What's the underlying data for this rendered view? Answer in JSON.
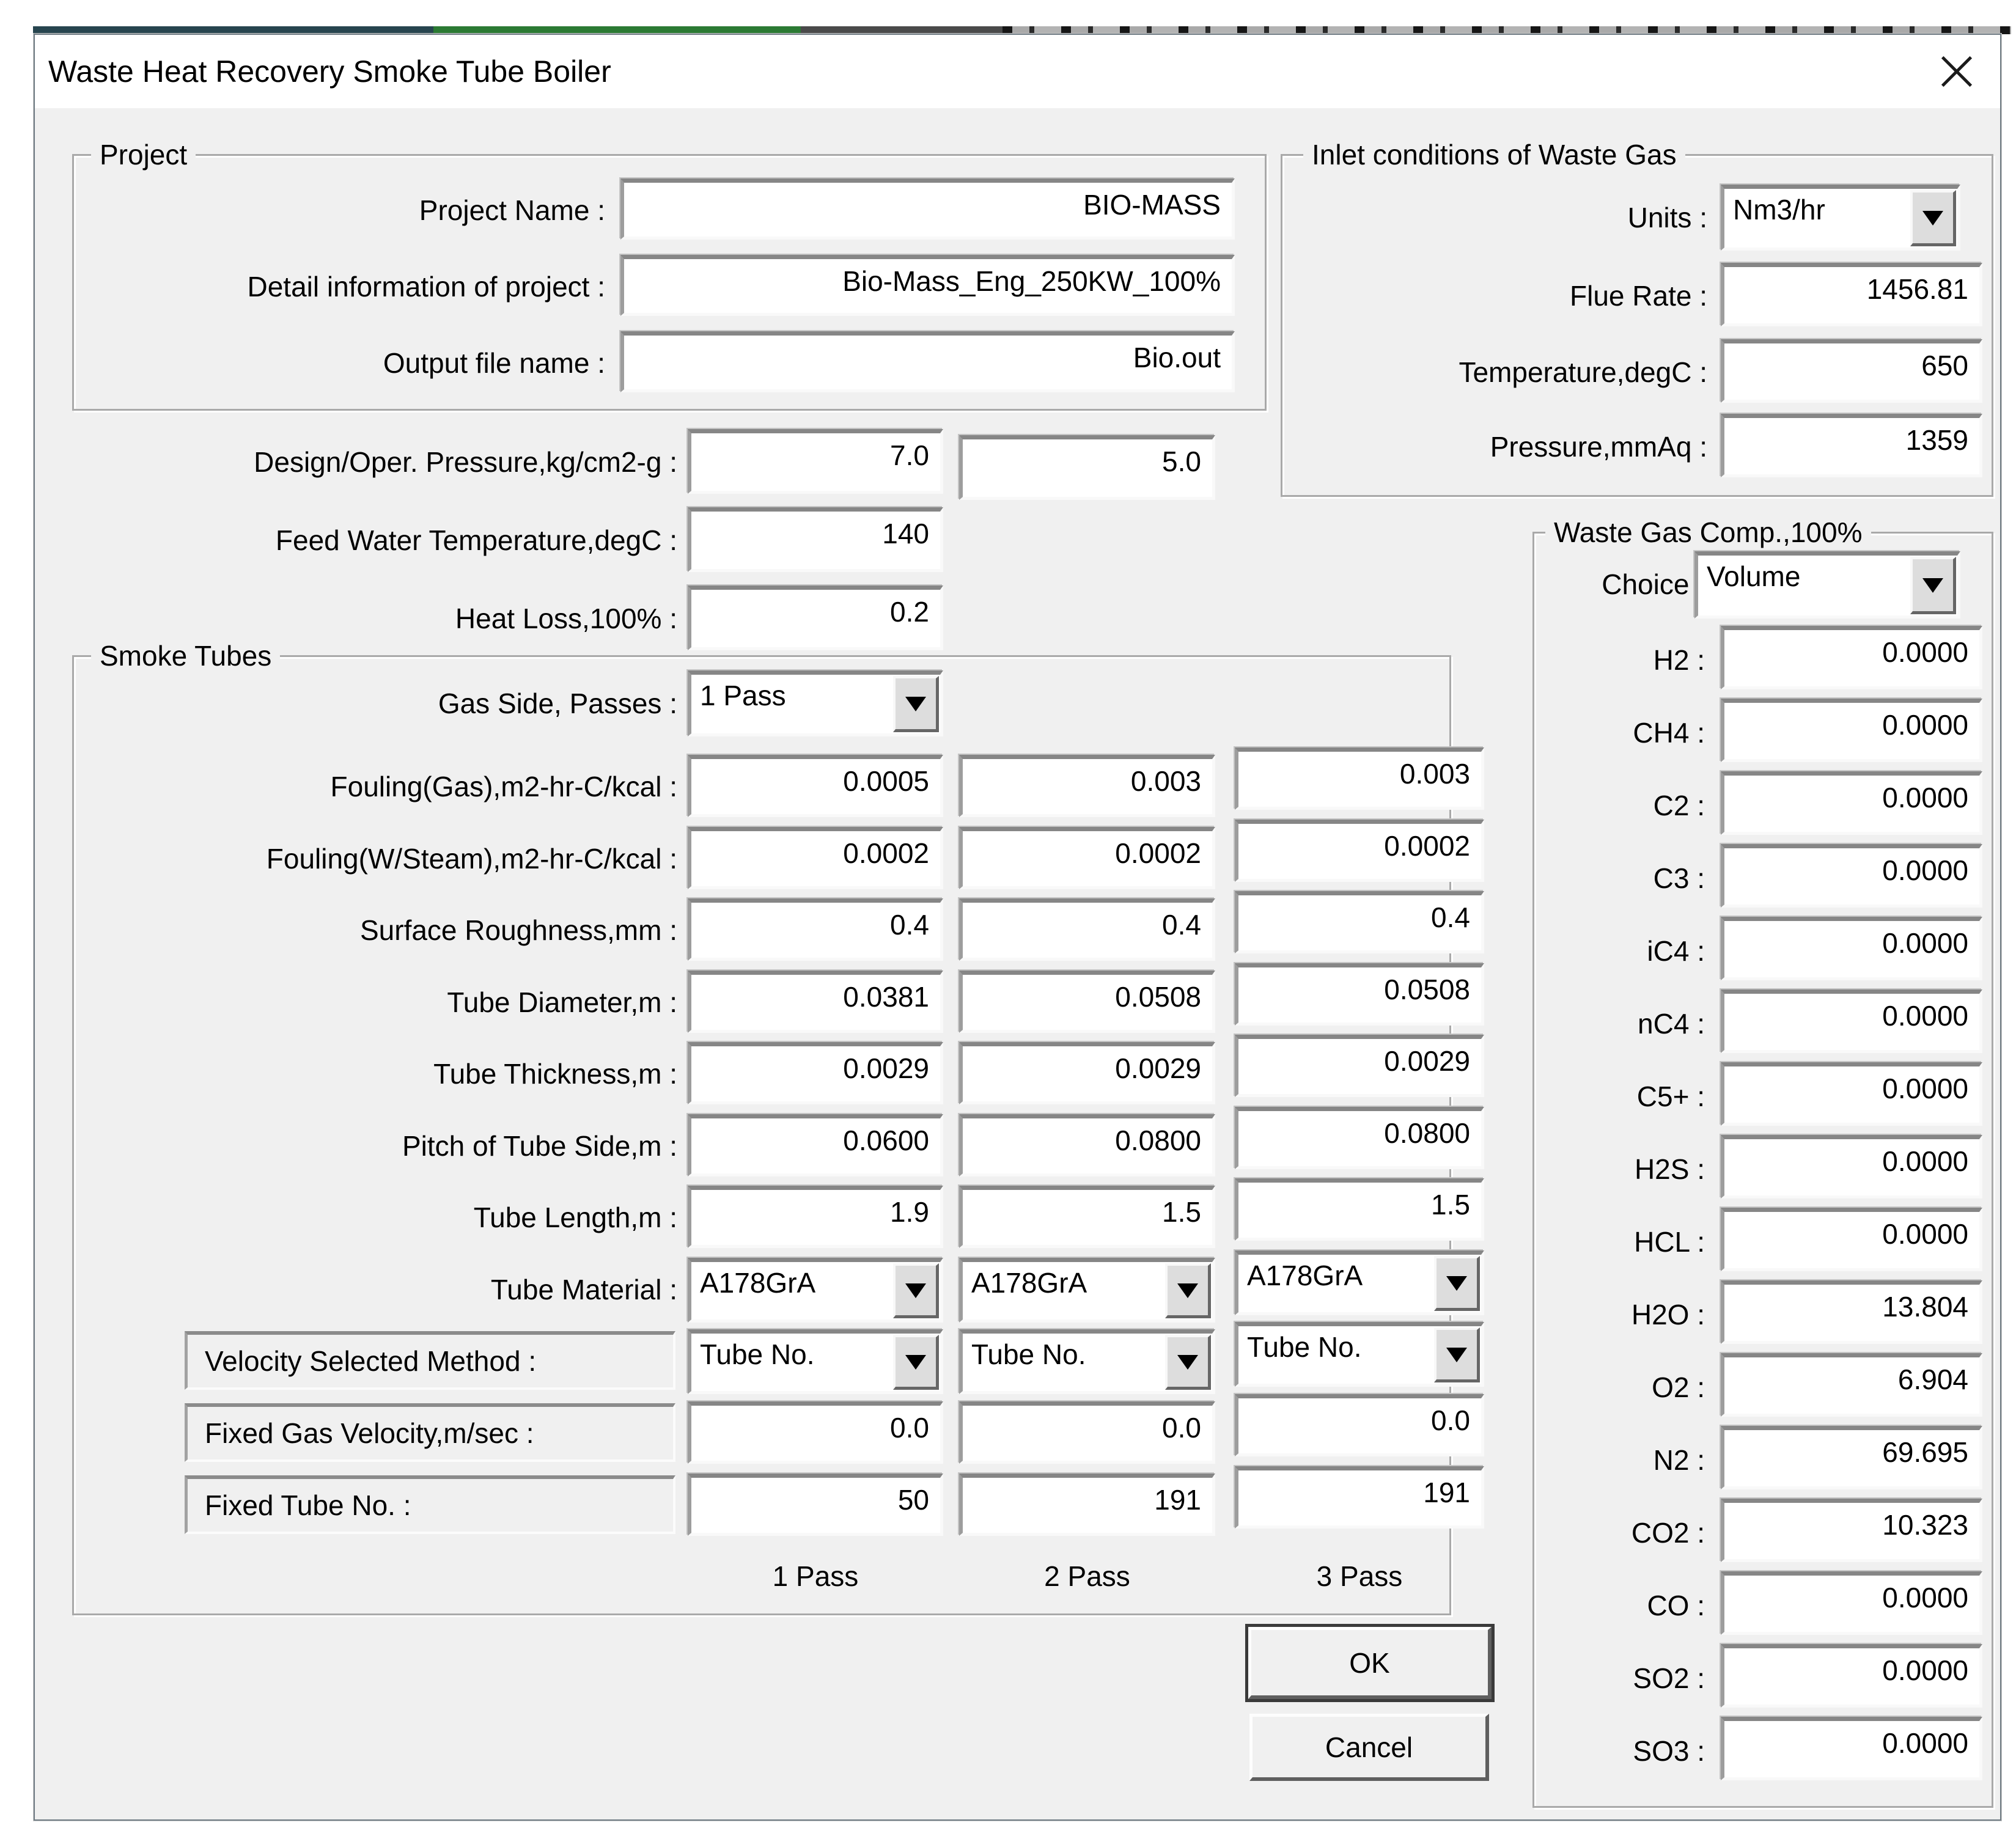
{
  "window": {
    "title": "Waste Heat Recovery Smoke Tube Boiler"
  },
  "project": {
    "label": "Project",
    "fields": [
      {
        "name": "project-name",
        "label": "Project Name :",
        "value": "BIO-MASS"
      },
      {
        "name": "project-detail",
        "label": "Detail information of project :",
        "value": "Bio-Mass_Eng_250KW_100%"
      },
      {
        "name": "output-file-name",
        "label": "Output file name :",
        "value": "Bio.out"
      }
    ]
  },
  "general_rows": [
    {
      "name": "design-oper-pressure",
      "label": "Design/Oper. Pressure,kg/cm2-g :",
      "values": [
        "7.0",
        "5.0"
      ]
    },
    {
      "name": "feed-water-temperature",
      "label": "Feed Water Temperature,degC :",
      "values": [
        "140"
      ]
    },
    {
      "name": "heat-loss",
      "label": "Heat Loss,100% :",
      "values": [
        "0.2"
      ]
    }
  ],
  "smoke_tubes": {
    "label": "Smoke Tubes",
    "gas_side": {
      "label": "Gas Side, Passes :",
      "value": "1 Pass"
    },
    "numeric_rows": [
      {
        "name": "fouling-gas",
        "label": "Fouling(Gas),m2-hr-C/kcal :",
        "values": [
          "0.0005",
          "0.003",
          "0.003"
        ]
      },
      {
        "name": "fouling-w-steam",
        "label": "Fouling(W/Steam),m2-hr-C/kcal :",
        "values": [
          "0.0002",
          "0.0002",
          "0.0002"
        ]
      },
      {
        "name": "surface-roughness",
        "label": "Surface Roughness,mm :",
        "values": [
          "0.4",
          "0.4",
          "0.4"
        ]
      },
      {
        "name": "tube-diameter",
        "label": "Tube Diameter,m :",
        "values": [
          "0.0381",
          "0.0508",
          "0.0508"
        ]
      },
      {
        "name": "tube-thickness",
        "label": "Tube Thickness,m :",
        "values": [
          "0.0029",
          "0.0029",
          "0.0029"
        ]
      },
      {
        "name": "pitch-of-tube-side",
        "label": "Pitch of Tube Side,m :",
        "values": [
          "0.0600",
          "0.0800",
          "0.0800"
        ]
      },
      {
        "name": "tube-length",
        "label": "Tube Length,m :",
        "values": [
          "1.9",
          "1.5",
          "1.5"
        ]
      }
    ],
    "tube_material": {
      "label": "Tube Material :",
      "values": [
        "A178GrA",
        "A178GrA",
        "A178GrA"
      ]
    },
    "velocity_method": {
      "label": "Velocity Selected Method :",
      "values": [
        "Tube No.",
        "Tube No.",
        "Tube No."
      ]
    },
    "fixed_gas_velocity": {
      "label": "Fixed Gas Velocity,m/sec :",
      "values": [
        "0.0",
        "0.0",
        "0.0"
      ]
    },
    "fixed_tube_no": {
      "label": "Fixed Tube No. :",
      "values": [
        "50",
        "191",
        "191"
      ]
    },
    "pass_footers": [
      "1 Pass",
      "2 Pass",
      "3 Pass"
    ]
  },
  "inlet": {
    "label": "Inlet conditions of Waste Gas",
    "units": {
      "label": "Units :",
      "value": "Nm3/hr"
    },
    "rows": [
      {
        "name": "flue-rate",
        "label": "Flue Rate :",
        "value": "1456.81"
      },
      {
        "name": "temperature",
        "label": "Temperature,degC :",
        "value": "650"
      },
      {
        "name": "pressure",
        "label": "Pressure,mmAq :",
        "value": "1359"
      }
    ]
  },
  "waste_gas": {
    "label": "Waste Gas Comp.,100%",
    "choice": {
      "label": "Choice :",
      "value": "Volume"
    },
    "components": [
      {
        "name": "h2",
        "label": "H2 :",
        "value": "0.0000"
      },
      {
        "name": "ch4",
        "label": "CH4 :",
        "value": "0.0000"
      },
      {
        "name": "c2",
        "label": "C2 :",
        "value": "0.0000"
      },
      {
        "name": "c3",
        "label": "C3 :",
        "value": "0.0000"
      },
      {
        "name": "ic4",
        "label": "iC4 :",
        "value": "0.0000"
      },
      {
        "name": "nc4",
        "label": "nC4 :",
        "value": "0.0000"
      },
      {
        "name": "c5plus",
        "label": "C5+ :",
        "value": "0.0000"
      },
      {
        "name": "h2s",
        "label": "H2S :",
        "value": "0.0000"
      },
      {
        "name": "hcl",
        "label": "HCL :",
        "value": "0.0000"
      },
      {
        "name": "h2o",
        "label": "H2O :",
        "value": "13.804"
      },
      {
        "name": "o2",
        "label": "O2 :",
        "value": "6.904"
      },
      {
        "name": "n2",
        "label": "N2 :",
        "value": "69.695"
      },
      {
        "name": "co2",
        "label": "CO2 :",
        "value": "10.323"
      },
      {
        "name": "co",
        "label": "CO :",
        "value": "0.0000"
      },
      {
        "name": "so2",
        "label": "SO2 :",
        "value": "0.0000"
      },
      {
        "name": "so3",
        "label": "SO3 :",
        "value": "0.0000"
      }
    ]
  },
  "buttons": {
    "ok": "OK",
    "cancel": "Cancel"
  }
}
